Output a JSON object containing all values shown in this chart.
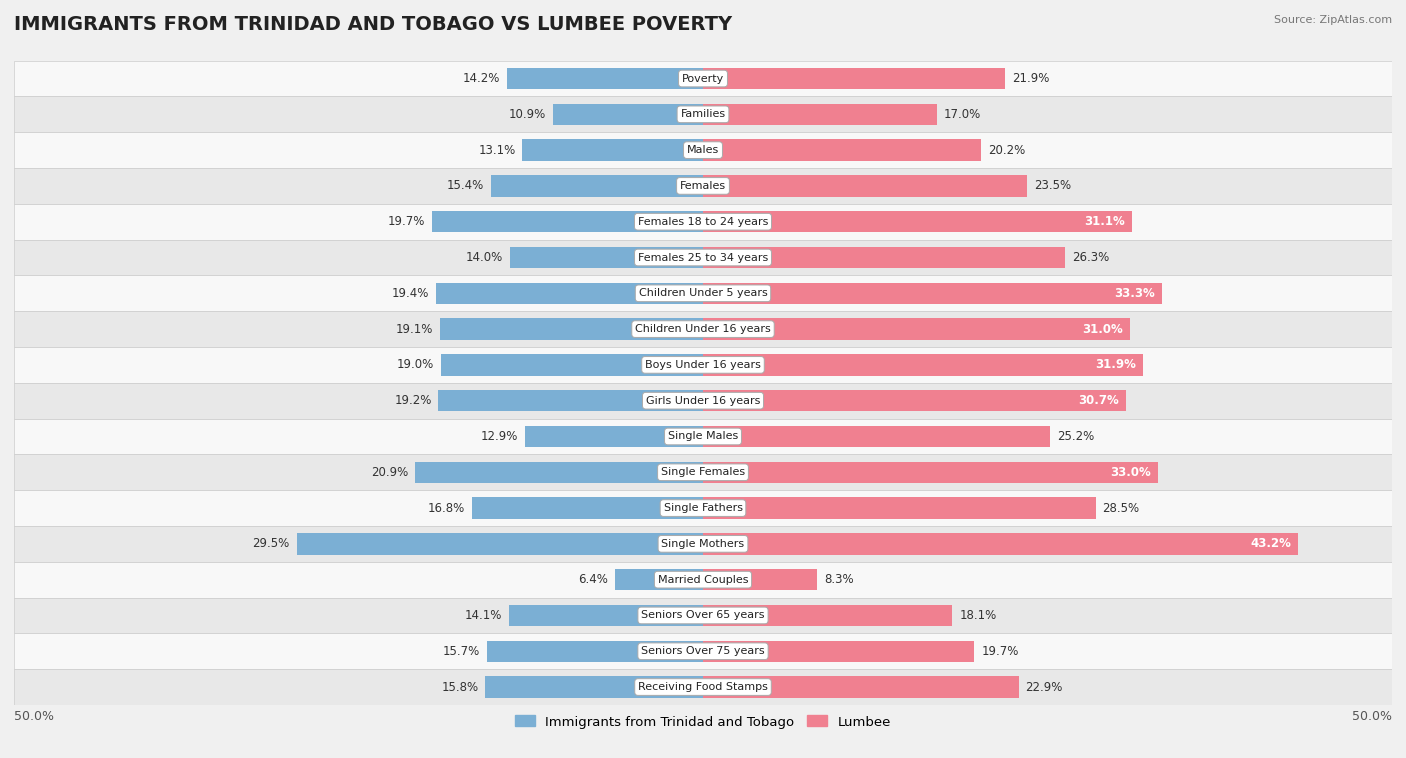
{
  "title": "IMMIGRANTS FROM TRINIDAD AND TOBAGO VS LUMBEE POVERTY",
  "source": "Source: ZipAtlas.com",
  "categories": [
    "Poverty",
    "Families",
    "Males",
    "Females",
    "Females 18 to 24 years",
    "Females 25 to 34 years",
    "Children Under 5 years",
    "Children Under 16 years",
    "Boys Under 16 years",
    "Girls Under 16 years",
    "Single Males",
    "Single Females",
    "Single Fathers",
    "Single Mothers",
    "Married Couples",
    "Seniors Over 65 years",
    "Seniors Over 75 years",
    "Receiving Food Stamps"
  ],
  "left_values": [
    14.2,
    10.9,
    13.1,
    15.4,
    19.7,
    14.0,
    19.4,
    19.1,
    19.0,
    19.2,
    12.9,
    20.9,
    16.8,
    29.5,
    6.4,
    14.1,
    15.7,
    15.8
  ],
  "right_values": [
    21.9,
    17.0,
    20.2,
    23.5,
    31.1,
    26.3,
    33.3,
    31.0,
    31.9,
    30.7,
    25.2,
    33.0,
    28.5,
    43.2,
    8.3,
    18.1,
    19.7,
    22.9
  ],
  "left_color": "#7bafd4",
  "right_color": "#f08090",
  "background_color": "#f0f0f0",
  "row_bg_even": "#f8f8f8",
  "row_bg_odd": "#e8e8e8",
  "axis_limit": 50.0,
  "legend_left": "Immigrants from Trinidad and Tobago",
  "legend_right": "Lumbee",
  "title_fontsize": 14,
  "bar_label_fontsize": 8.5,
  "category_fontsize": 8.0
}
